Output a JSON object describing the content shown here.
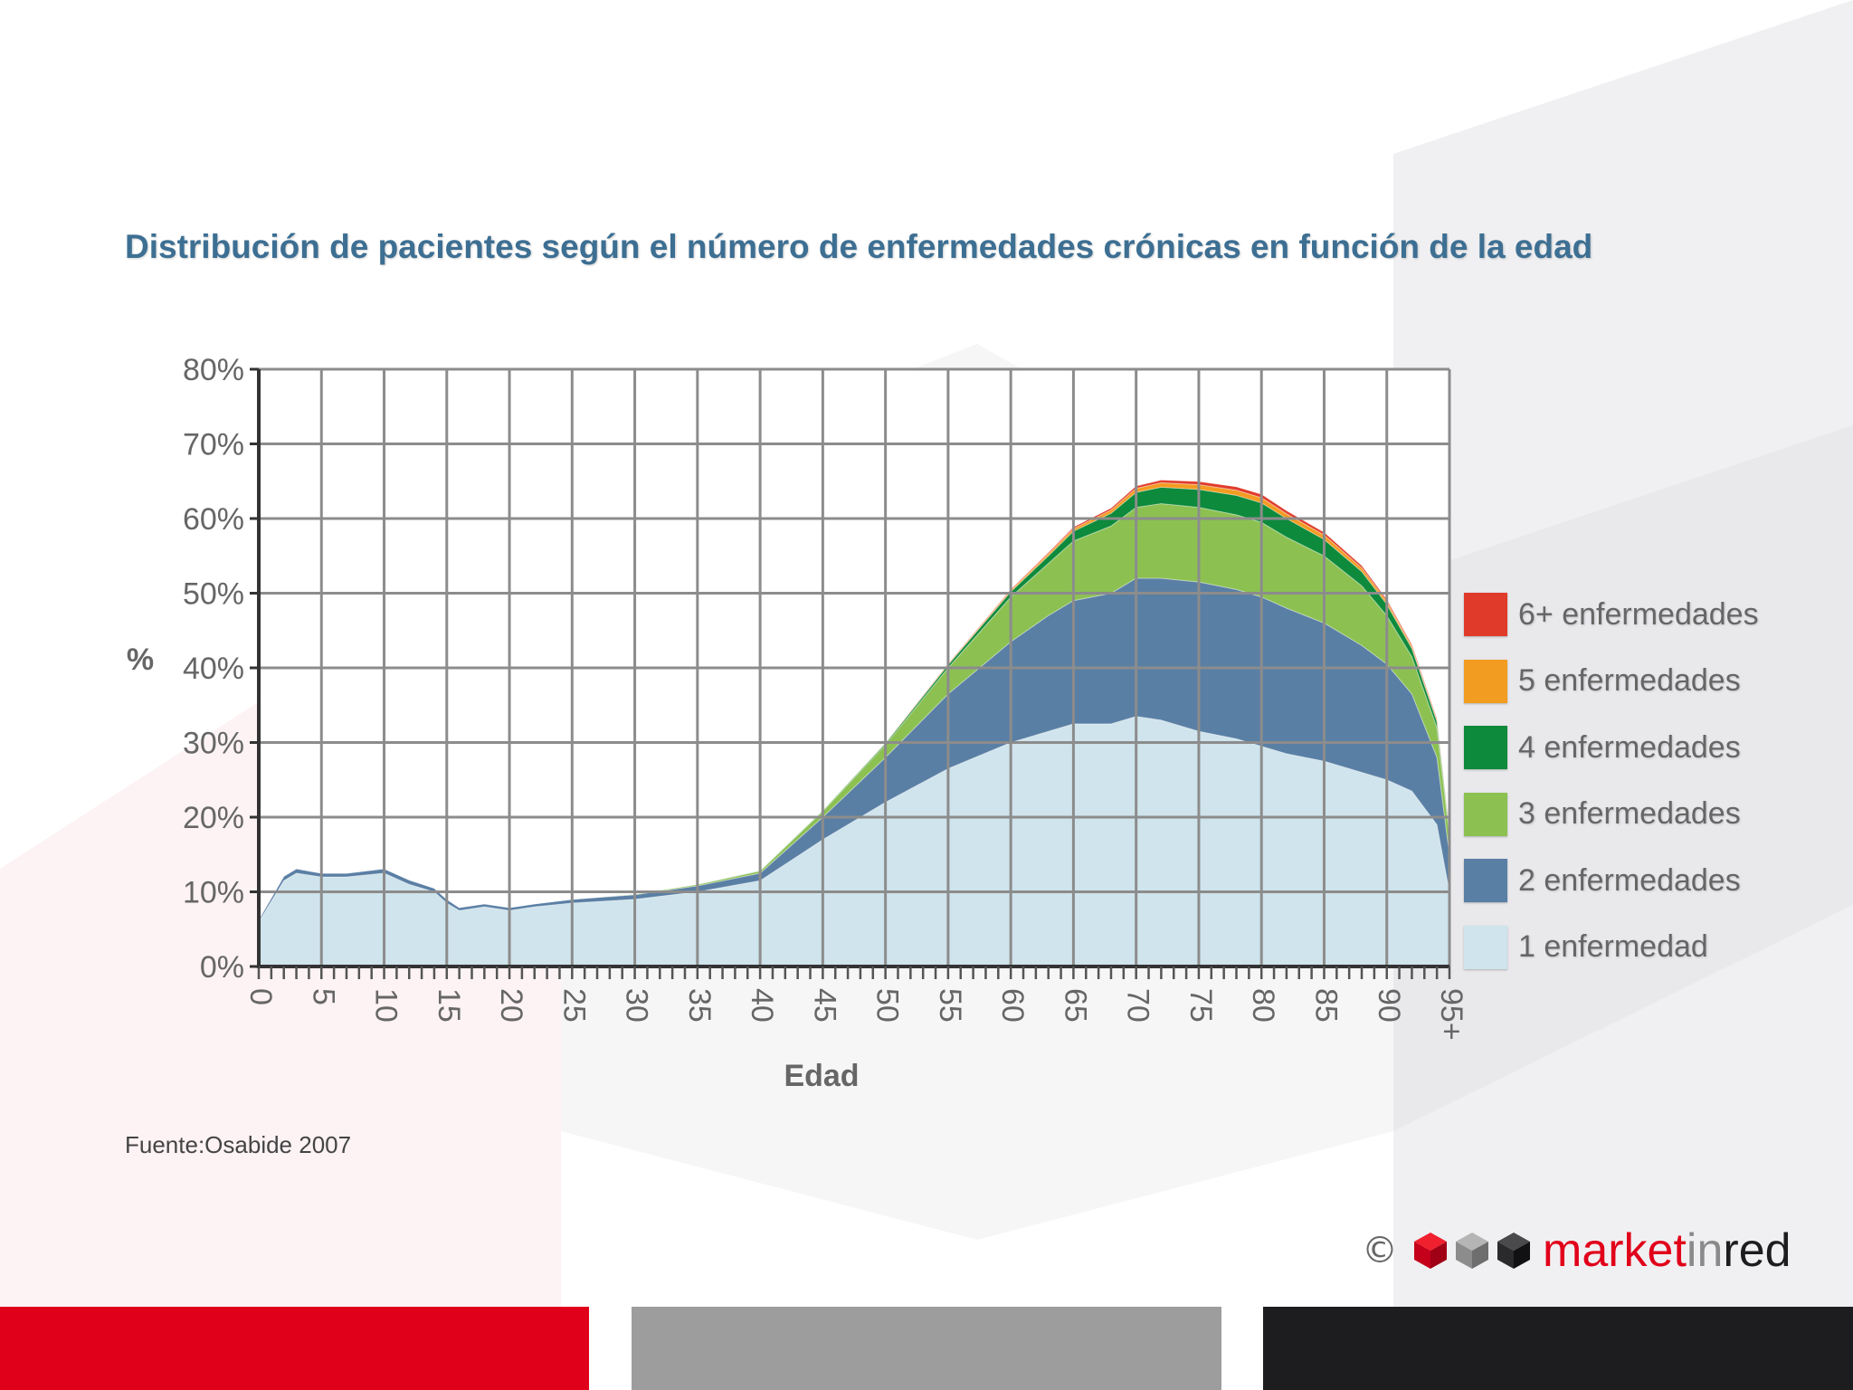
{
  "title": "Distribución de pacientes según el número de enfermedades crónicas en función de la edad",
  "source": "Fuente:Osabide 2007",
  "brand": {
    "copyright": "©",
    "name_part1": "market",
    "name_part2": "in",
    "name_part3": "red",
    "colors": {
      "red": "#e1001a",
      "gray": "#9d9d9d",
      "dark": "#1d1d1f"
    }
  },
  "chart_data": {
    "type": "area",
    "stacked": true,
    "title": "Distribución de pacientes según el número de enfermedades crónicas en función de la edad",
    "xlabel": "Edad",
    "ylabel": "%",
    "xlim": [
      0,
      95
    ],
    "ylim": [
      0,
      80
    ],
    "x_ticks": [
      "0",
      "5",
      "10",
      "15",
      "20",
      "25",
      "30",
      "35",
      "40",
      "45",
      "50",
      "55",
      "60",
      "65",
      "70",
      "75",
      "80",
      "85",
      "90",
      "95+"
    ],
    "y_ticks": [
      "0%",
      "10%",
      "20%",
      "30%",
      "40%",
      "50%",
      "60%",
      "70%",
      "80%"
    ],
    "grid": true,
    "legend_position": "right",
    "x": [
      0,
      2,
      3,
      5,
      7,
      10,
      12,
      14,
      15,
      16,
      18,
      20,
      22,
      25,
      30,
      35,
      40,
      45,
      50,
      55,
      60,
      63,
      65,
      68,
      70,
      72,
      75,
      78,
      80,
      82,
      85,
      88,
      90,
      92,
      94,
      95
    ],
    "series": [
      {
        "name": "1 enfermedad",
        "color": "#cfe4ec",
        "values": [
          6,
          11.5,
          12.5,
          12,
          12,
          12.5,
          11,
          10,
          8.5,
          7.5,
          8,
          7.5,
          8,
          8.5,
          9,
          10,
          11.5,
          17,
          22,
          26.5,
          30,
          31.5,
          32.5,
          32.5,
          33.5,
          33,
          31.5,
          30.5,
          29.5,
          28.5,
          27.5,
          26,
          25,
          23.5,
          19,
          10
        ]
      },
      {
        "name": "2 enfermedades",
        "color": "#5a7fa5",
        "values": [
          0.3,
          0.6,
          0.6,
          0.5,
          0.5,
          0.6,
          0.6,
          0.5,
          0.5,
          0.4,
          0.4,
          0.4,
          0.4,
          0.5,
          0.6,
          0.8,
          1,
          3,
          6,
          10,
          13.5,
          15.5,
          16.5,
          17.5,
          18.5,
          19,
          20,
          20,
          20,
          19.5,
          18.5,
          17,
          15.5,
          13,
          9,
          5
        ]
      },
      {
        "name": "3 enfermedades",
        "color": "#8cc152",
        "values": [
          0,
          0,
          0,
          0,
          0,
          0,
          0,
          0,
          0,
          0,
          0,
          0,
          0,
          0,
          0.1,
          0.2,
          0.3,
          0.8,
          1.7,
          3.5,
          6,
          7,
          8,
          9,
          9.5,
          10,
          10,
          10,
          10,
          9.5,
          9,
          8,
          6.5,
          5,
          4,
          2.5
        ]
      },
      {
        "name": "4 enfermedades",
        "color": "#0d8a3c",
        "values": [
          0,
          0,
          0,
          0,
          0,
          0,
          0,
          0,
          0,
          0,
          0,
          0,
          0,
          0,
          0,
          0,
          0.05,
          0.1,
          0.2,
          0.4,
          0.7,
          1,
          1.3,
          1.7,
          2,
          2.2,
          2.4,
          2.6,
          2.6,
          2.5,
          2.2,
          1.9,
          1.5,
          1.1,
          0.8,
          0.5
        ]
      },
      {
        "name": "5 enfermedades",
        "color": "#f39c22",
        "values": [
          0,
          0,
          0,
          0,
          0,
          0,
          0,
          0,
          0,
          0,
          0,
          0,
          0,
          0,
          0,
          0,
          0,
          0,
          0.05,
          0.1,
          0.2,
          0.3,
          0.35,
          0.45,
          0.55,
          0.6,
          0.65,
          0.7,
          0.7,
          0.65,
          0.6,
          0.5,
          0.4,
          0.3,
          0.2,
          0.1
        ]
      },
      {
        "name": "6+ enfermedades",
        "color": "#e03a2a",
        "values": [
          0,
          0,
          0,
          0,
          0,
          0,
          0,
          0,
          0,
          0,
          0,
          0,
          0,
          0,
          0,
          0,
          0,
          0,
          0,
          0.05,
          0.1,
          0.15,
          0.2,
          0.25,
          0.3,
          0.35,
          0.4,
          0.45,
          0.45,
          0.4,
          0.35,
          0.3,
          0.25,
          0.2,
          0.15,
          0.1
        ]
      }
    ]
  }
}
